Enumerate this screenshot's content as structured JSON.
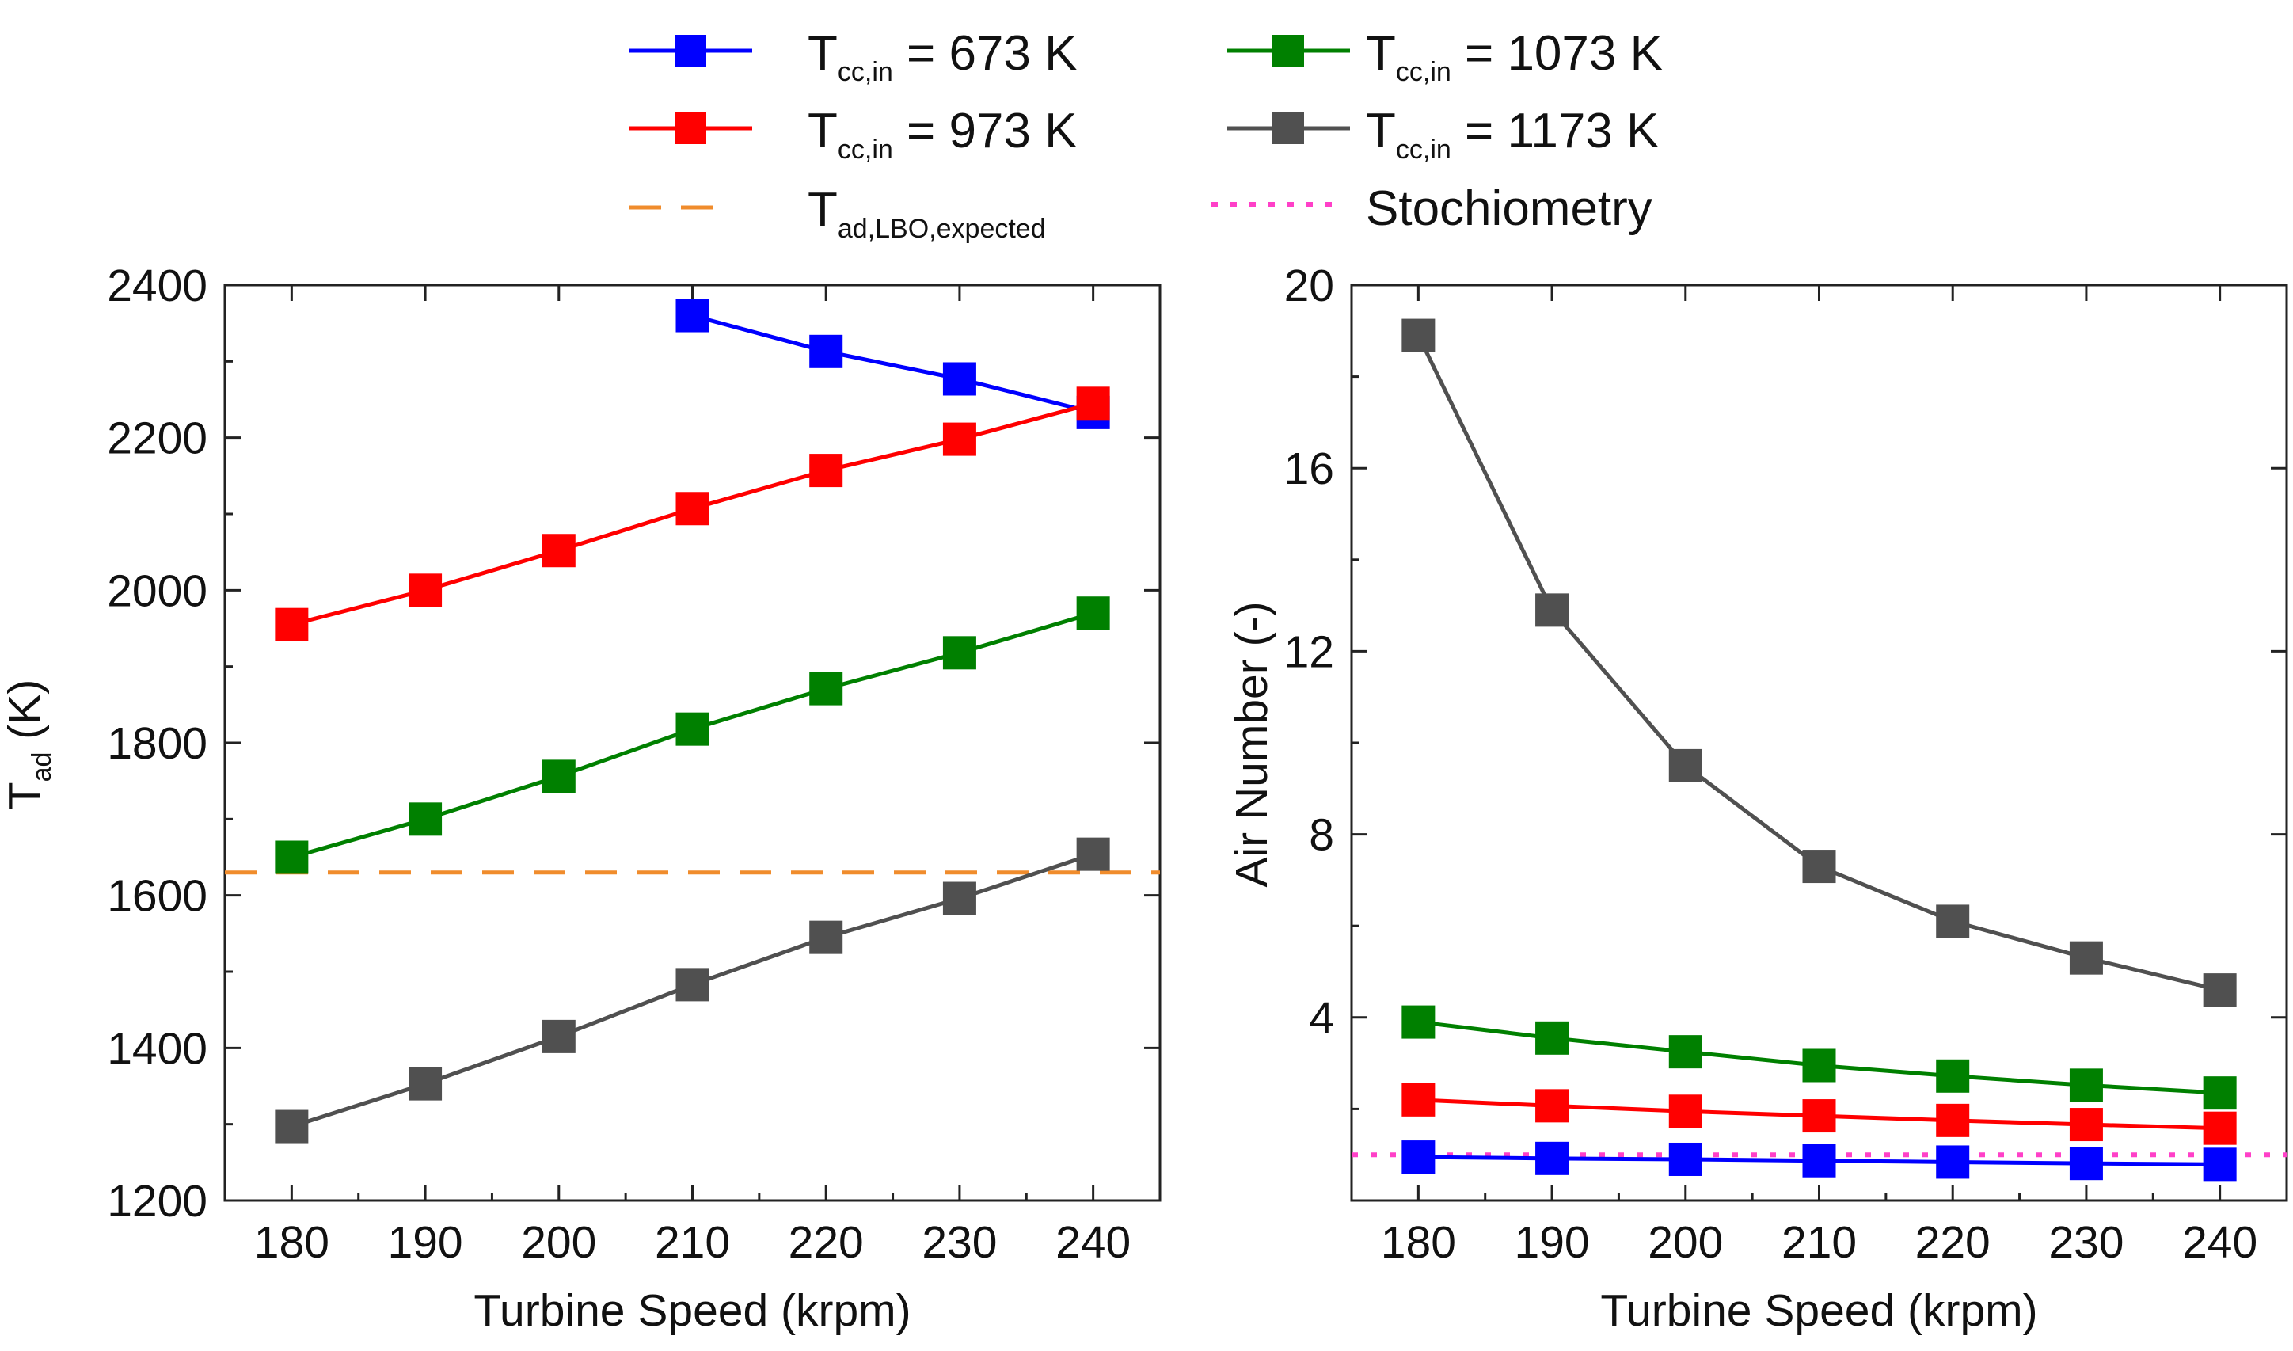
{
  "legend": {
    "entries": [
      {
        "key": "s673",
        "base": "T",
        "sub": "cc,in",
        "rest": " = 673 K",
        "color": "#0000ff",
        "style": "line-square"
      },
      {
        "key": "s1073",
        "base": "T",
        "sub": "cc,in",
        "rest": " = 1073 K",
        "color": "#008000",
        "style": "line-square"
      },
      {
        "key": "s973",
        "base": "T",
        "sub": "cc,in",
        "rest": " = 973 K",
        "color": "#ff0000",
        "style": "line-square"
      },
      {
        "key": "s1173",
        "base": "T",
        "sub": "cc,in",
        "rest": " = 1173 K",
        "color": "#505050",
        "style": "line-square"
      },
      {
        "key": "lbo",
        "base": "T",
        "sub": "ad,LBO,expected",
        "rest": "",
        "color": "#f08c2c",
        "style": "dashed"
      },
      {
        "key": "stoich",
        "base": "Stochiometry",
        "sub": "",
        "rest": "",
        "color": "#ff40c8",
        "style": "dotted"
      }
    ]
  },
  "chart_data": [
    {
      "type": "line",
      "xlabel": "Turbine Speed (krpm)",
      "ylabel": {
        "base": "T",
        "sub": "ad",
        "rest": " (K)"
      },
      "xlim": [
        175,
        245
      ],
      "ylim": [
        1200,
        2400
      ],
      "xticks": [
        180,
        190,
        200,
        210,
        220,
        230,
        240
      ],
      "yticks": [
        1200,
        1400,
        1600,
        1800,
        2000,
        2200,
        2400
      ],
      "series": [
        {
          "name": "Tcc,in = 673 K",
          "color": "#0000ff",
          "x": [
            210,
            220,
            230,
            240
          ],
          "values": [
            2360,
            2313,
            2277,
            2233
          ]
        },
        {
          "name": "Tcc,in = 973 K",
          "color": "#ff0000",
          "x": [
            180,
            190,
            200,
            210,
            220,
            230,
            240
          ],
          "values": [
            1955,
            2000,
            2052,
            2107,
            2157,
            2198,
            2245
          ]
        },
        {
          "name": "Tcc,in = 1073 K",
          "color": "#008000",
          "x": [
            180,
            190,
            200,
            210,
            220,
            230,
            240
          ],
          "values": [
            1650,
            1700,
            1756,
            1818,
            1871,
            1918,
            1970
          ]
        },
        {
          "name": "Tcc,in = 1173 K",
          "color": "#505050",
          "x": [
            180,
            190,
            200,
            210,
            220,
            230,
            240
          ],
          "values": [
            1297,
            1353,
            1415,
            1483,
            1545,
            1596,
            1654
          ]
        }
      ],
      "reference_lines": [
        {
          "name": "Tad,LBO,expected",
          "value": 1630,
          "color": "#f08c2c",
          "style": "dashed"
        }
      ]
    },
    {
      "type": "line",
      "xlabel": "Turbine Speed (krpm)",
      "ylabel": {
        "base": "Air Number (-)",
        "sub": "",
        "rest": ""
      },
      "xlim": [
        175,
        245
      ],
      "ylim": [
        0,
        20
      ],
      "xticks": [
        180,
        190,
        200,
        210,
        220,
        230,
        240
      ],
      "yticks": [
        4,
        8,
        12,
        16,
        20
      ],
      "series": [
        {
          "name": "Tcc,in = 673 K",
          "color": "#0000ff",
          "x": [
            180,
            190,
            200,
            210,
            220,
            230,
            240
          ],
          "values": [
            0.95,
            0.92,
            0.9,
            0.87,
            0.84,
            0.81,
            0.79
          ]
        },
        {
          "name": "Tcc,in = 973 K",
          "color": "#ff0000",
          "x": [
            180,
            190,
            200,
            210,
            220,
            230,
            240
          ],
          "values": [
            2.2,
            2.07,
            1.95,
            1.85,
            1.75,
            1.66,
            1.58
          ]
        },
        {
          "name": "Tcc,in = 1073 K",
          "color": "#008000",
          "x": [
            180,
            190,
            200,
            210,
            220,
            230,
            240
          ],
          "values": [
            3.9,
            3.55,
            3.25,
            2.95,
            2.72,
            2.52,
            2.35
          ]
        },
        {
          "name": "Tcc,in = 1173 K",
          "color": "#505050",
          "x": [
            180,
            190,
            200,
            210,
            220,
            230,
            240
          ],
          "values": [
            18.9,
            12.9,
            9.5,
            7.3,
            6.1,
            5.3,
            4.6
          ]
        }
      ],
      "reference_lines": [
        {
          "name": "Stochiometry",
          "value": 1.0,
          "color": "#ff40c8",
          "style": "dotted"
        }
      ]
    }
  ]
}
